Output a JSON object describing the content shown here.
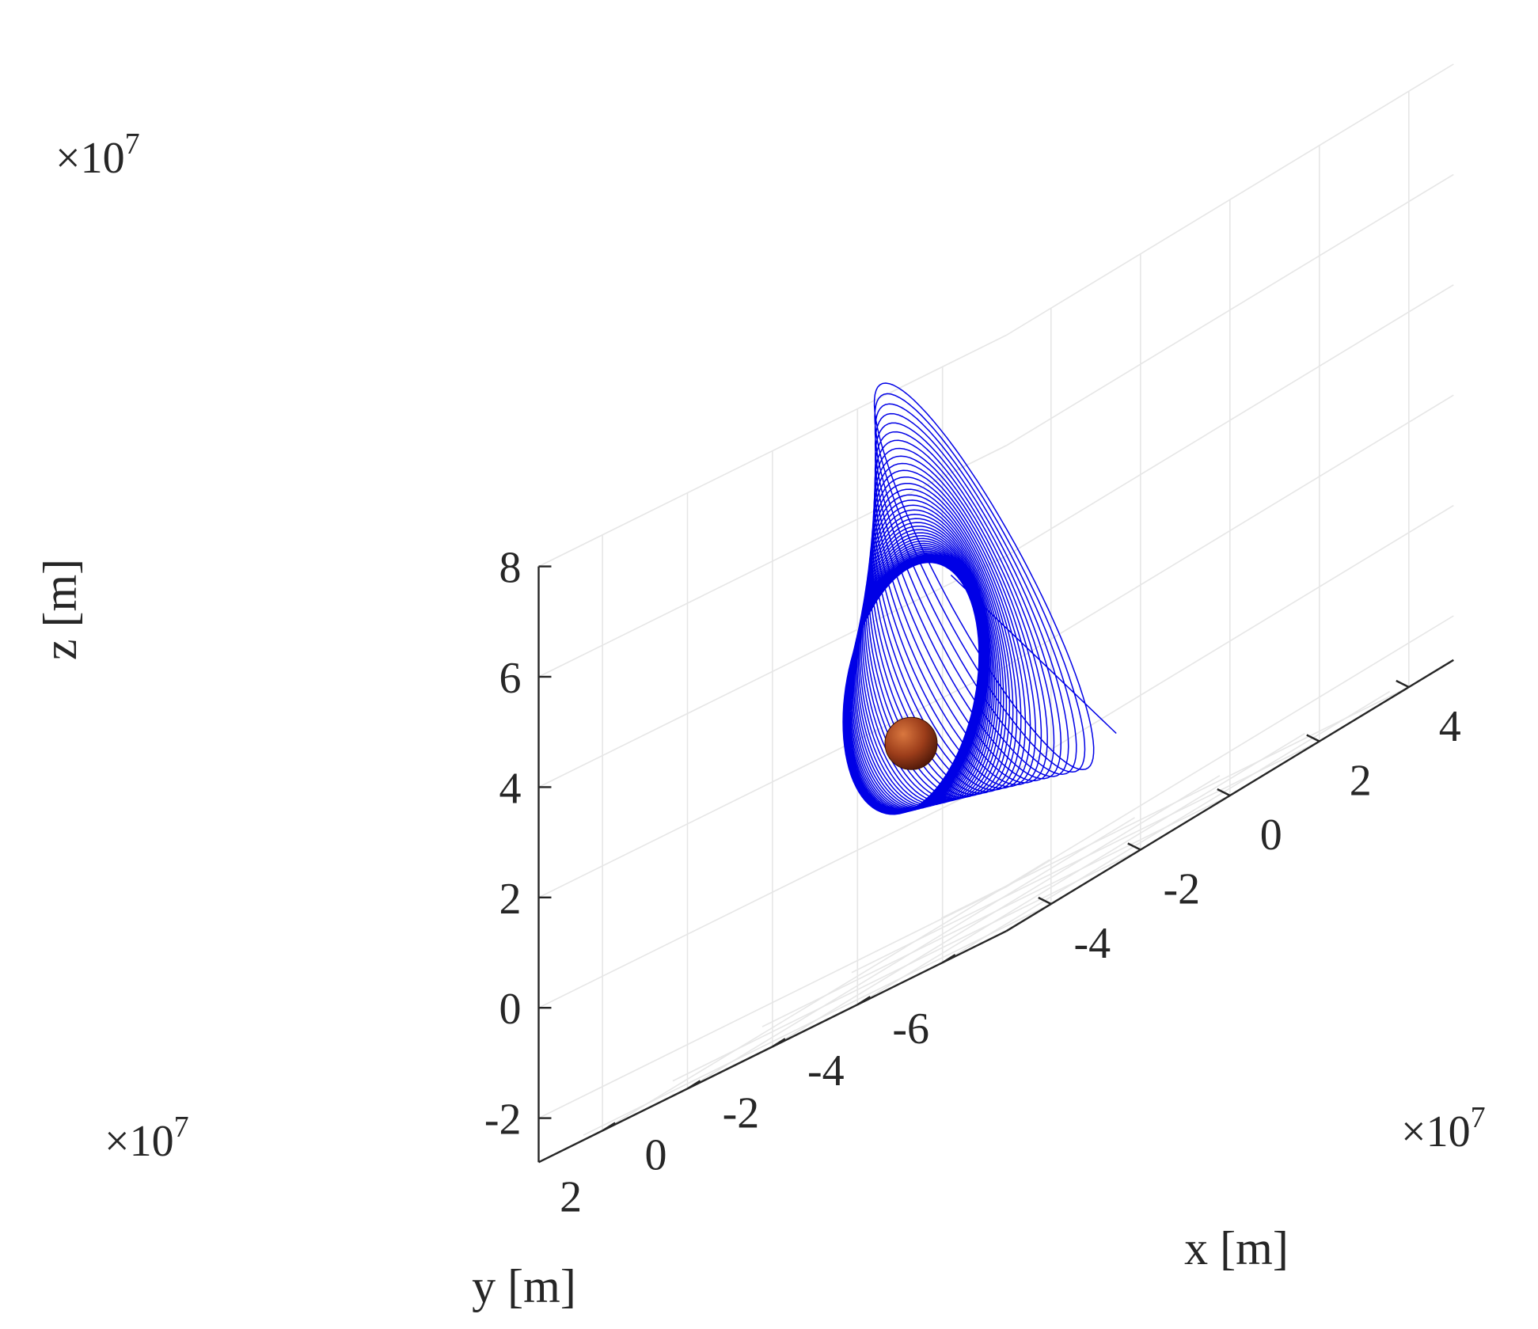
{
  "chart_data": {
    "type": "line",
    "projection": "3d",
    "title": "",
    "xlabel": "x [m]",
    "ylabel": "y [m]",
    "zlabel": "z [m]",
    "x_ticks": [
      "-4",
      "-2",
      "0",
      "2",
      "4"
    ],
    "y_ticks": [
      "2",
      "0",
      "-2",
      "-4",
      "-6"
    ],
    "z_ticks": [
      "8",
      "6",
      "4",
      "2",
      "0",
      "-2"
    ],
    "x_exponent": "×10",
    "y_exponent": "×10",
    "z_exponent": "×10",
    "exponent_power": "7",
    "xlim": [
      -5,
      5
    ],
    "ylim": [
      -7.5,
      3.5
    ],
    "zlim": [
      -2.8,
      8.0
    ],
    "grid": true,
    "legend": "none",
    "series": [
      {
        "kind": "spiraling orbital trajectory",
        "color": "#0000e6",
        "revolutions": 55,
        "inner_loop": {
          "center_y": 0.0,
          "center_z": 2.0,
          "radius_y": 1.6,
          "radius_z": 2.2
        },
        "outer_loop": {
          "center_y": -2.0,
          "center_z": 3.4,
          "radius_y": 4.5,
          "radius_z": 4.6
        },
        "end_point": {
          "x": 0.5,
          "y": -4.3,
          "z": -0.7
        }
      }
    ],
    "central_body": {
      "x": 0.0,
      "y": 0.0,
      "z": 1.0,
      "color": "#a3421e"
    }
  }
}
